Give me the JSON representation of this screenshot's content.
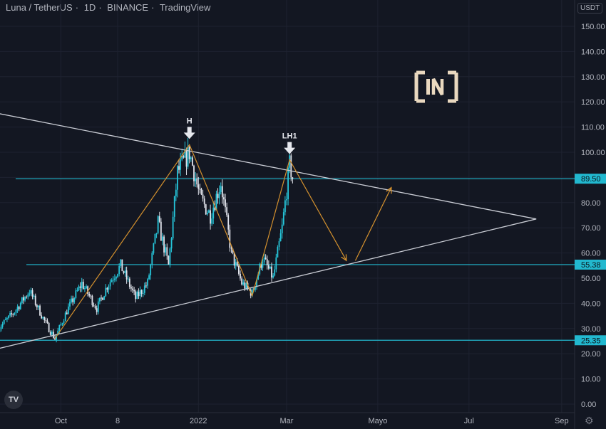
{
  "header": {
    "symbol": "Luna / TetherUS",
    "interval": "1D",
    "exchange": "BINANCE",
    "source": "TradingView"
  },
  "currency_button": "USDT",
  "watermark_text": "[IN]",
  "tv_logo_text": "TV",
  "colors": {
    "background": "#131722",
    "up": "#26c6da",
    "down": "#e0e3eb",
    "hline": "#22b8cf",
    "trend": "#c9ccd4",
    "projection": "#d4912e",
    "axis_text": "#b2b5be"
  },
  "chart_data": {
    "type": "line",
    "title": "Luna / TetherUS · 1D · BINANCE · TradingView",
    "x_ticks": [
      "Oct",
      "8",
      "2022",
      "Mar",
      "Mayo",
      "Jul",
      "Sep"
    ],
    "y_ticks": [
      0,
      10,
      20,
      30,
      40,
      50,
      60,
      70,
      80,
      90,
      100,
      110,
      120,
      130,
      140,
      150
    ],
    "ylim": [
      -1,
      162
    ],
    "price_labels": [
      {
        "value": 89.5,
        "text": "89.50"
      },
      {
        "value": 55.38,
        "text": "55.38"
      },
      {
        "value": 25.35,
        "text": "25.35"
      }
    ],
    "horizontal_lines": [
      89.5,
      55.38,
      25.35
    ],
    "annotations": [
      {
        "text": "H",
        "x": "2021-12-26",
        "y": 103
      },
      {
        "text": "LH1",
        "x": "2022-03-03",
        "y": 97
      }
    ],
    "trendlines": [
      {
        "from": {
          "x": "2021-08-15",
          "y": 116
        },
        "to": {
          "x": "2022-08-15",
          "y": 73.5
        }
      },
      {
        "from": {
          "x": "2021-08-20",
          "y": 22
        },
        "to": {
          "x": "2022-08-15",
          "y": 73.5
        }
      }
    ],
    "projection_path": [
      {
        "x": "2021-09-27",
        "y": 26
      },
      {
        "x": "2021-12-26",
        "y": 103
      },
      {
        "x": "2022-02-06",
        "y": 43
      },
      {
        "x": "2022-03-03",
        "y": 97
      },
      {
        "x": "2022-04-10",
        "y": 57
      },
      {
        "x": "2022-04-16",
        "y": 57
      },
      {
        "x": "2022-05-10",
        "y": 86
      }
    ],
    "series": [
      {
        "x": [
          "2021-08-20",
          "2021-08-30",
          "2021-09-10",
          "2021-09-20",
          "2021-09-27",
          "2021-10-05",
          "2021-10-15",
          "2021-10-25",
          "2021-11-01",
          "2021-11-10",
          "2021-11-20",
          "2021-11-28",
          "2021-12-05",
          "2021-12-12",
          "2021-12-18",
          "2021-12-26",
          "2022-01-02",
          "2022-01-09",
          "2022-01-16",
          "2022-01-23",
          "2022-01-30",
          "2022-02-06",
          "2022-02-13",
          "2022-02-20",
          "2022-02-26",
          "2022-03-03",
          "2022-03-05"
        ],
        "values": [
          30,
          36,
          45,
          33,
          26,
          37,
          48,
          38,
          47,
          55,
          42,
          48,
          72,
          55,
          92,
          100,
          82,
          75,
          88,
          60,
          48,
          44,
          58,
          50,
          70,
          95,
          90
        ]
      }
    ]
  }
}
